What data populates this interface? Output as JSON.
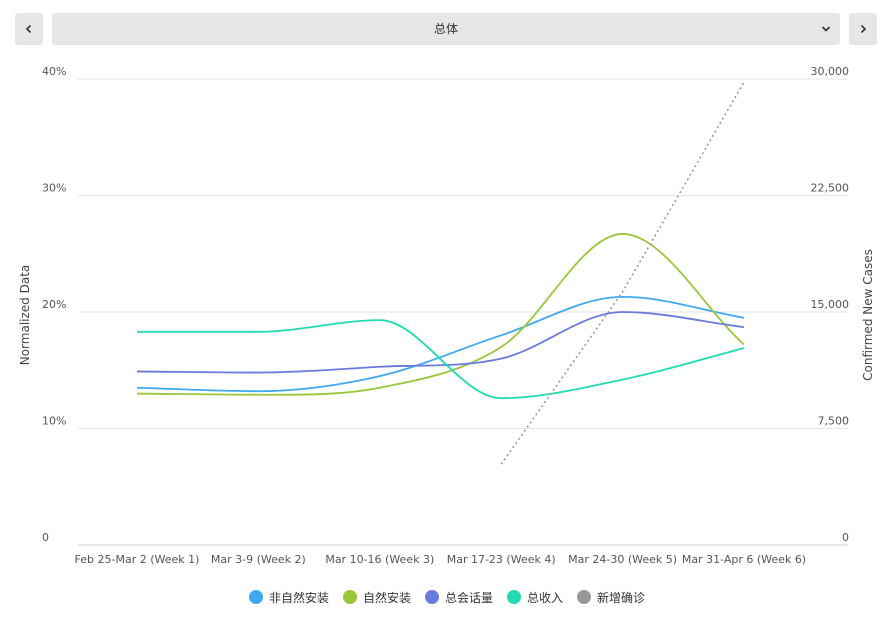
{
  "nav": {
    "prev_icon": "chevron-left-icon",
    "next_icon": "chevron-right-icon",
    "selector_value": "总体",
    "selector_icon": "chevron-down-icon"
  },
  "chart_data": {
    "type": "line",
    "title": "",
    "categories": [
      "Feb 25-Mar 2 (Week 1)",
      "Mar 3-9 (Week 2)",
      "Mar 10-16 (Week 3)",
      "Mar 17-23 (Week 4)",
      "Mar 24-30 (Week 5)",
      "Mar 31-Apr 6 (Week 6)"
    ],
    "ylabel": "Normalized Data",
    "y2label": "Confirmed New Cases",
    "ylim": [
      0,
      40
    ],
    "y2lim": [
      0,
      30000
    ],
    "yticks": [
      "0",
      "10%",
      "20%",
      "30%",
      "40%"
    ],
    "y2ticks": [
      "0",
      "7,500",
      "15,000",
      "22,500",
      "30,000"
    ],
    "grid": true,
    "legend_position": "bottom",
    "series": [
      {
        "name": "非自然安装",
        "color": "#3fa9f0",
        "axis": "left",
        "style": "solid",
        "values": [
          13.5,
          13.2,
          14.5,
          18.0,
          21.3,
          19.5
        ]
      },
      {
        "name": "自然安装",
        "color": "#9ac63a",
        "axis": "left",
        "style": "solid",
        "values": [
          13.0,
          12.9,
          13.5,
          17.0,
          26.7,
          17.2
        ]
      },
      {
        "name": "总会话量",
        "color": "#6b7bdd",
        "axis": "left",
        "style": "solid",
        "values": [
          14.9,
          14.8,
          15.3,
          16.0,
          20.0,
          18.7
        ]
      },
      {
        "name": "总收入",
        "color": "#1fdcb2",
        "axis": "left",
        "style": "solid",
        "values": [
          18.3,
          18.3,
          19.3,
          12.6,
          14.2,
          16.9
        ]
      },
      {
        "name": "新增确诊",
        "color": "#999999",
        "axis": "right",
        "style": "dotted",
        "values": [
          null,
          null,
          null,
          5200,
          16300,
          29800
        ]
      }
    ]
  }
}
